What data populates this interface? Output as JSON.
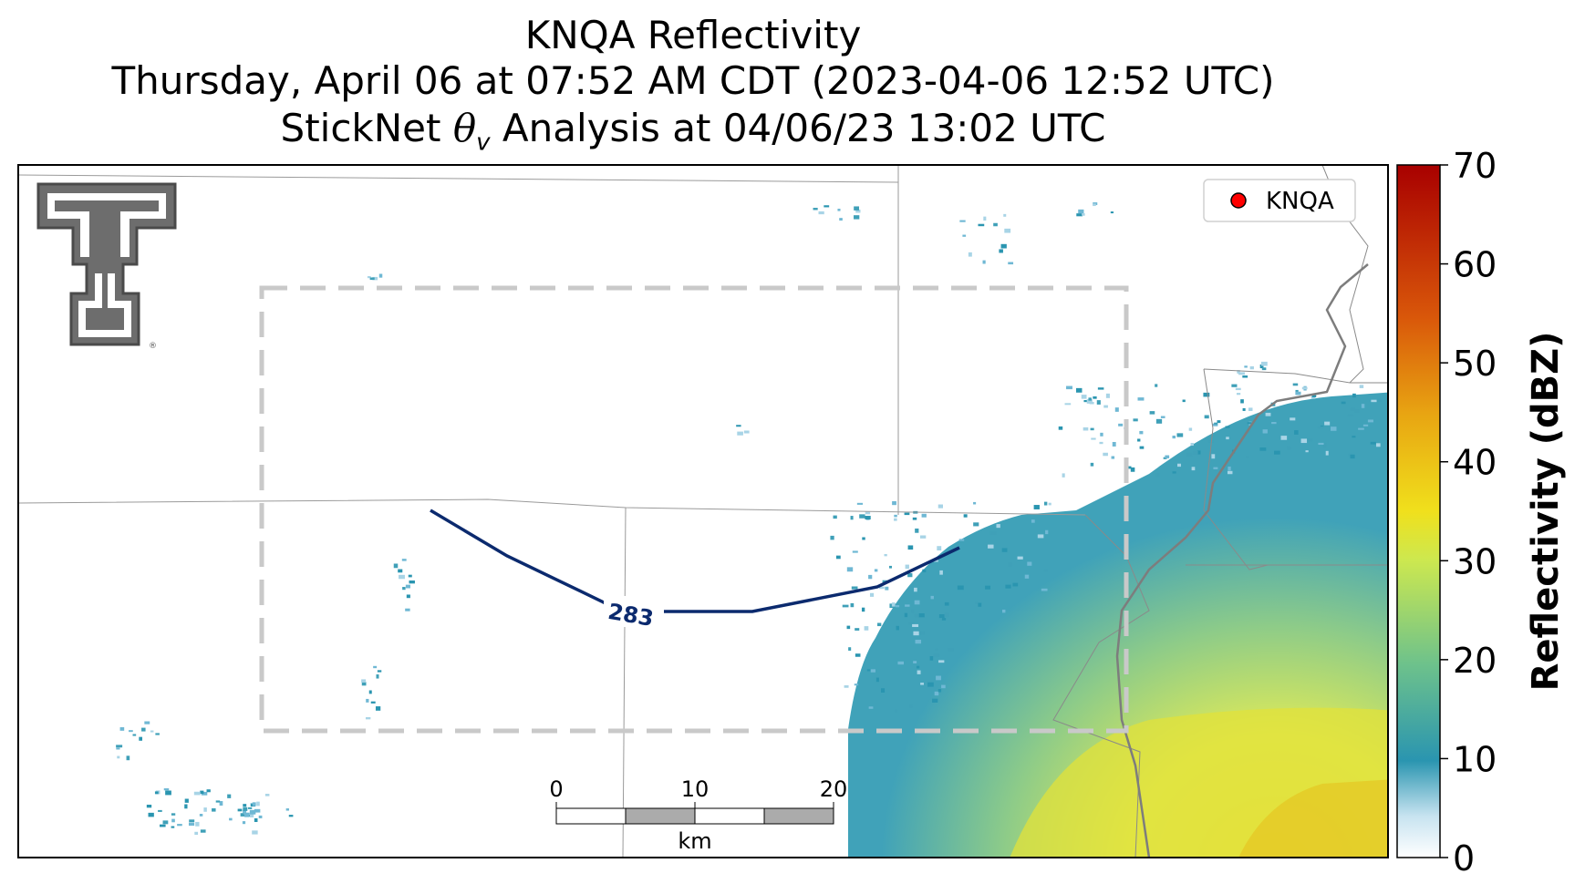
{
  "title": {
    "line1": "KNQA Reflectivity",
    "line2": "Thursday, April 06 at 07:52 AM CDT (2023-04-06 12:52 UTC)",
    "line3_prefix": "StickNet ",
    "line3_symbol": "θ",
    "line3_subscript": "v",
    "line3_suffix": " Analysis at 04/06/23 13:02 UTC"
  },
  "legend": {
    "label": "KNQA",
    "marker_color": "#ff0000"
  },
  "contour": {
    "label": "283",
    "color": "#0b2a6e"
  },
  "scale_bar": {
    "ticks": [
      "0",
      "10",
      "20"
    ],
    "unit": "km"
  },
  "colorbar": {
    "label": "Reflectivity (dBZ)",
    "ticks": [
      "0",
      "10",
      "20",
      "30",
      "40",
      "50",
      "60",
      "70"
    ],
    "range": [
      0,
      70
    ],
    "colors": [
      "#ffffff",
      "#8fc6de",
      "#2a95b0",
      "#6ec28b",
      "#cde84f",
      "#f0e01c",
      "#e8a512",
      "#d9570a",
      "#a80000"
    ]
  },
  "logo": {
    "text": "T"
  }
}
